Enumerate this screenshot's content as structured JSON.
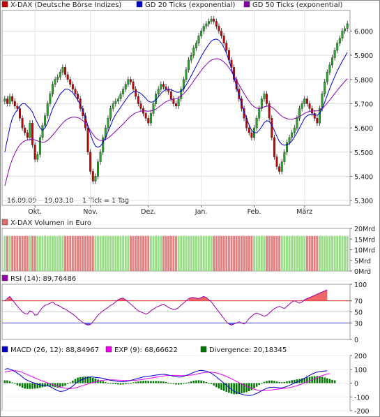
{
  "chart_data": [
    {
      "panel": "price",
      "type": "candlestick",
      "legend": [
        {
          "label": "X-DAX (Deutsche Börse Indizes)",
          "color": "#cc0000"
        },
        {
          "label": "GD 20 Ticks (exponential)",
          "color": "#0000cc"
        },
        {
          "label": "GD 50 Ticks (exponential)",
          "color": "#8800aa"
        }
      ],
      "date_range": "16.09.09 – 19.03.10",
      "tick_info": "1 Tick = 1 Tag",
      "x_labels": [
        "Okt.",
        "Nov.",
        "Dez.",
        "Jan.",
        "Feb.",
        "März"
      ],
      "y_ticks": [
        "6.000",
        "5.900",
        "5.800",
        "5.700",
        "5.600",
        "5.500",
        "5.400",
        "5.300"
      ],
      "ylim": [
        5280,
        6085
      ],
      "up_color": "#22aa22",
      "down_color": "#cc0000",
      "candle_closes": [
        5720,
        5700,
        5730,
        5710,
        5690,
        5680,
        5640,
        5600,
        5580,
        5560,
        5620,
        5530,
        5470,
        5490,
        5560,
        5610,
        5650,
        5700,
        5740,
        5780,
        5800,
        5810,
        5830,
        5850,
        5820,
        5800,
        5780,
        5760,
        5740,
        5720,
        5680,
        5650,
        5600,
        5500,
        5420,
        5380,
        5400,
        5460,
        5500,
        5560,
        5600,
        5640,
        5680,
        5700,
        5710,
        5720,
        5740,
        5760,
        5780,
        5800,
        5790,
        5760,
        5730,
        5700,
        5680,
        5660,
        5640,
        5620,
        5660,
        5700,
        5740,
        5760,
        5780,
        5770,
        5760,
        5750,
        5720,
        5700,
        5690,
        5720,
        5760,
        5800,
        5840,
        5880,
        5900,
        5930,
        5950,
        5980,
        6000,
        6020,
        6030,
        6040,
        6050,
        6040,
        6020,
        6000,
        5980,
        5950,
        5920,
        5880,
        5850,
        5800,
        5760,
        5720,
        5680,
        5640,
        5600,
        5580,
        5560,
        5600,
        5640,
        5680,
        5720,
        5740,
        5700,
        5640,
        5560,
        5480,
        5440,
        5420,
        5460,
        5500,
        5540,
        5560,
        5580,
        5600,
        5640,
        5680,
        5700,
        5720,
        5700,
        5680,
        5660,
        5640,
        5620,
        5680,
        5740,
        5790,
        5830,
        5860,
        5890,
        5920,
        5950,
        5970,
        6000,
        6010,
        6030
      ],
      "gd20": [
        5500,
        5550,
        5600,
        5640,
        5660,
        5675,
        5690,
        5700,
        5700,
        5690,
        5680,
        5665,
        5640,
        5620,
        5600,
        5590,
        5600,
        5620,
        5650,
        5680,
        5700,
        5720,
        5740,
        5750,
        5760,
        5760,
        5755,
        5745,
        5730,
        5715,
        5695,
        5670,
        5645,
        5610,
        5575,
        5545,
        5525,
        5520,
        5525,
        5540,
        5560,
        5585,
        5610,
        5635,
        5655,
        5670,
        5685,
        5700,
        5715,
        5730,
        5742,
        5748,
        5750,
        5748,
        5742,
        5733,
        5722,
        5710,
        5706,
        5708,
        5716,
        5728,
        5742,
        5752,
        5758,
        5760,
        5758,
        5753,
        5748,
        5747,
        5751,
        5762,
        5777,
        5796,
        5815,
        5835,
        5855,
        5875,
        5895,
        5913,
        5930,
        5945,
        5958,
        5965,
        5967,
        5962,
        5950,
        5932,
        5908,
        5878,
        5845,
        5808,
        5770,
        5735,
        5700,
        5668,
        5638,
        5612,
        5590,
        5580,
        5580,
        5590,
        5605,
        5622,
        5630,
        5626,
        5612,
        5590,
        5565,
        5544,
        5532,
        5528,
        5530,
        5536,
        5546,
        5562,
        5580,
        5600,
        5620,
        5640,
        5650,
        5655,
        5657,
        5656,
        5652,
        5660,
        5680,
        5706,
        5735,
        5762,
        5788,
        5812,
        5835,
        5856,
        5876,
        5894,
        5912
      ],
      "gd50": [
        5360,
        5400,
        5440,
        5470,
        5495,
        5515,
        5530,
        5540,
        5547,
        5550,
        5552,
        5553,
        5550,
        5546,
        5543,
        5540,
        5542,
        5548,
        5558,
        5570,
        5582,
        5595,
        5608,
        5620,
        5630,
        5637,
        5642,
        5644,
        5644,
        5642,
        5638,
        5630,
        5620,
        5606,
        5590,
        5574,
        5560,
        5552,
        5548,
        5548,
        5552,
        5558,
        5566,
        5576,
        5586,
        5596,
        5606,
        5616,
        5627,
        5638,
        5648,
        5656,
        5662,
        5666,
        5669,
        5670,
        5670,
        5669,
        5670,
        5673,
        5678,
        5685,
        5693,
        5701,
        5708,
        5713,
        5717,
        5719,
        5721,
        5725,
        5732,
        5741,
        5752,
        5765,
        5779,
        5794,
        5809,
        5823,
        5837,
        5850,
        5862,
        5872,
        5880,
        5884,
        5886,
        5885,
        5880,
        5872,
        5862,
        5848,
        5832,
        5815,
        5796,
        5778,
        5760,
        5742,
        5725,
        5710,
        5696,
        5687,
        5682,
        5681,
        5683,
        5687,
        5690,
        5690,
        5686,
        5678,
        5668,
        5657,
        5648,
        5642,
        5638,
        5636,
        5636,
        5638,
        5642,
        5647,
        5653,
        5660,
        5665,
        5668,
        5670,
        5670,
        5670,
        5673,
        5680,
        5690,
        5702,
        5715,
        5728,
        5742,
        5755,
        5768,
        5780,
        5792,
        5803
      ]
    },
    {
      "panel": "volume",
      "type": "bar",
      "legend": [
        {
          "label": "X-DAX Volumen in Euro",
          "color": "#e07070"
        }
      ],
      "y_ticks": [
        "20Mrd",
        "15Mrd",
        "10Mrd",
        "5Mrd",
        "0Mrd"
      ],
      "ylim": [
        0,
        20
      ],
      "values": [
        16.5,
        16.5,
        16.5,
        16.5,
        16.5,
        16.5,
        16.5,
        16.5,
        16.5,
        16.5,
        16.5,
        16.5,
        16.5,
        16.5,
        16.5,
        16.5,
        16.5,
        16.5,
        16.5,
        16.5,
        16.5,
        16.5,
        16.5,
        16.5,
        16.5,
        16.5,
        16.5,
        16.5,
        16.5,
        16.5,
        16.5,
        16.5,
        16.5,
        16.5,
        16.5,
        16.5,
        16.5,
        16.5,
        16.5,
        16.5,
        16.5,
        16.5,
        16.5,
        16.5,
        16.5,
        16.5,
        16.5,
        16.5,
        16.5,
        16.5,
        16.5,
        16.5,
        16.5,
        16.5,
        16.5,
        16.5,
        16.5,
        16.5,
        16.5,
        16.5,
        16.5,
        16.5,
        16.5,
        16.5,
        16.5,
        16.5,
        16.5,
        16.5,
        16.5,
        16.5,
        16.5,
        16.5,
        16.5,
        16.5,
        16.5,
        16.5,
        16.5,
        16.5,
        16.5,
        16.5,
        16.5,
        16.5,
        16.5,
        16.5,
        16.5,
        16.5,
        16.5,
        16.5,
        16.5,
        16.5,
        16.5,
        16.5,
        16.5,
        16.5,
        16.5,
        16.5,
        16.5,
        16.5,
        16.5,
        16.5,
        16.5,
        16.5,
        16.5,
        16.5,
        16.5,
        16.5,
        16.5,
        16.5,
        16.5,
        16.5,
        16.5,
        16.5,
        16.5,
        16.5,
        16.5,
        16.5,
        16.5,
        16.5,
        16.5,
        16.5,
        16.5,
        16.5,
        16.5,
        16.5,
        16.5,
        16.5,
        16.5,
        16.5,
        16.5,
        16.5,
        16.5,
        16.5,
        16.5,
        16.5,
        16.5,
        16.5,
        16.5,
        16.5,
        16.5,
        16.5,
        4
      ]
    },
    {
      "panel": "rsi",
      "type": "line",
      "legend": [
        {
          "label": "RSI (14): 89,76486",
          "color": "#9900aa"
        }
      ],
      "y_ticks": [
        "100",
        "70",
        "50",
        "30",
        "0"
      ],
      "ylim": [
        0,
        100
      ],
      "upper_band": 70,
      "lower_band": 30,
      "values": [
        70,
        74,
        78,
        72,
        66,
        60,
        55,
        50,
        47,
        46,
        52,
        50,
        44,
        45,
        52,
        58,
        62,
        63,
        66,
        68,
        64,
        62,
        60,
        57,
        55,
        52,
        49,
        46,
        42,
        38,
        34,
        31,
        28,
        26,
        27,
        32,
        38,
        44,
        48,
        52,
        55,
        58,
        62,
        64,
        68,
        72,
        74,
        75,
        72,
        68,
        64,
        60,
        56,
        52,
        50,
        48,
        46,
        48,
        52,
        55,
        58,
        60,
        62,
        64,
        61,
        58,
        56,
        54,
        55,
        58,
        62,
        66,
        70,
        74,
        76,
        76,
        75,
        74,
        76,
        78,
        76,
        72,
        68,
        62,
        56,
        50,
        44,
        38,
        32,
        28,
        26,
        28,
        30,
        32,
        30,
        28,
        32,
        38,
        42,
        46,
        48,
        46,
        44,
        42,
        44,
        48,
        52,
        56,
        58,
        60,
        58,
        56,
        60,
        64,
        68,
        70,
        68,
        66,
        68,
        72,
        74,
        76,
        78,
        80,
        82,
        84,
        86,
        88,
        90
      ]
    },
    {
      "panel": "macd",
      "type": "line",
      "legend": [
        {
          "label": "MACD (26, 12): 88,84967",
          "color": "#0000cc"
        },
        {
          "label": "EXP (9): 68,66622",
          "color": "#ee00ee"
        },
        {
          "label": "Divergence: 20,18345",
          "color": "#007700"
        }
      ],
      "y_ticks": [
        "200",
        "100",
        "0",
        "-100",
        "-200"
      ],
      "ylim": [
        -200,
        200
      ],
      "macd": [
        100,
        105,
        102,
        95,
        85,
        72,
        60,
        45,
        30,
        20,
        12,
        5,
        -2,
        -8,
        -12,
        -15,
        -18,
        -20,
        -25,
        -35,
        -45,
        -55,
        -60,
        -58,
        -55,
        -45,
        -35,
        -20,
        -5,
        10,
        20,
        28,
        35,
        42,
        45,
        44,
        42,
        40,
        38,
        35,
        30,
        25,
        20,
        18,
        15,
        12,
        10,
        10,
        12,
        15,
        20,
        25,
        30,
        35,
        40,
        45,
        48,
        50,
        52,
        55,
        58,
        60,
        62,
        64,
        62,
        58,
        54,
        50,
        46,
        44,
        45,
        50,
        56,
        62,
        70,
        78,
        85,
        90,
        92,
        90,
        86,
        80,
        72,
        60,
        45,
        30,
        15,
        0,
        -15,
        -30,
        -45,
        -58,
        -68,
        -75,
        -80,
        -85,
        -88,
        -90,
        -88,
        -82,
        -75,
        -65,
        -55,
        -45,
        -38,
        -32,
        -30,
        -30,
        -32,
        -34,
        -34,
        -30,
        -24,
        -16,
        -8,
        0,
        8,
        16,
        26,
        36,
        46,
        56,
        66,
        74,
        80,
        84,
        86,
        88,
        89
      ],
      "exp": [
        80,
        84,
        88,
        90,
        90,
        88,
        84,
        78,
        70,
        62,
        54,
        46,
        38,
        30,
        22,
        15,
        8,
        2,
        -4,
        -10,
        -16,
        -22,
        -28,
        -33,
        -37,
        -39,
        -40,
        -38,
        -35,
        -30,
        -24,
        -18,
        -12,
        -6,
        0,
        5,
        10,
        14,
        18,
        21,
        23,
        24,
        24,
        24,
        23,
        22,
        21,
        20,
        19,
        19,
        19,
        20,
        21,
        23,
        25,
        28,
        31,
        34,
        37,
        40,
        43,
        46,
        49,
        52,
        54,
        55,
        56,
        56,
        56,
        55,
        54,
        54,
        55,
        56,
        58,
        61,
        65,
        69,
        73,
        76,
        78,
        79,
        79,
        77,
        74,
        69,
        63,
        56,
        48,
        40,
        31,
        22,
        12,
        3,
        -6,
        -15,
        -23,
        -31,
        -38,
        -44,
        -49,
        -52,
        -54,
        -54,
        -53,
        -51,
        -49,
        -46,
        -44,
        -42,
        -40,
        -38,
        -36,
        -33,
        -29,
        -24,
        -18,
        -12,
        -6,
        1,
        8,
        16,
        24,
        32,
        40,
        48,
        55,
        61,
        66,
        69
      ],
      "divergence": [
        20,
        20,
        14,
        5,
        -5,
        -16,
        -24,
        -33,
        -40,
        -42,
        -42,
        -41,
        -40,
        -38,
        -34,
        -30,
        -26,
        -22,
        -21,
        -25,
        -29,
        -33,
        -32,
        -25,
        -18,
        -6,
        5,
        18,
        30,
        40,
        44,
        46,
        47,
        48,
        45,
        39,
        32,
        26,
        20,
        14,
        7,
        1,
        -4,
        -6,
        -8,
        -10,
        -11,
        -10,
        -7,
        -4,
        1,
        5,
        9,
        12,
        15,
        17,
        17,
        16,
        15,
        15,
        15,
        14,
        13,
        12,
        8,
        3,
        -2,
        -6,
        -10,
        -11,
        -9,
        -4,
        1,
        6,
        12,
        17,
        20,
        21,
        19,
        14,
        8,
        1,
        -7,
        -17,
        -29,
        -39,
        -48,
        -56,
        -63,
        -70,
        -76,
        -80,
        -80,
        -78,
        -74,
        -70,
        -65,
        -59,
        -50,
        -38,
        -26,
        -13,
        -1,
        9,
        15,
        19,
        19,
        16,
        12,
        8,
        6,
        8,
        12,
        17,
        21,
        24,
        27,
        30,
        34,
        38,
        42,
        45,
        48,
        50,
        51,
        50,
        46,
        41,
        35,
        30,
        24,
        20
      ]
    }
  ]
}
